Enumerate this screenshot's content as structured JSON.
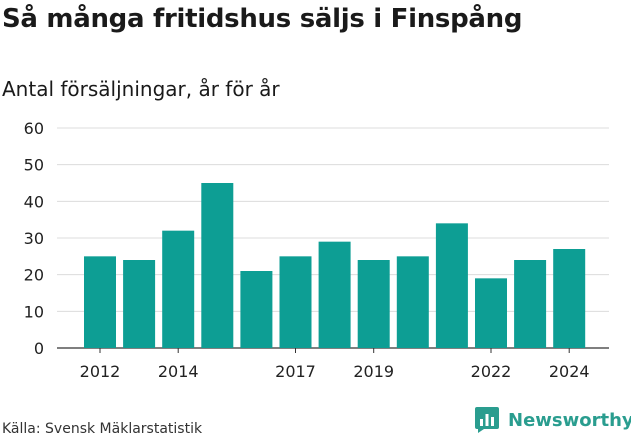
{
  "title": "Så många fritidshus säljs i Finspång",
  "subtitle": "Antal försäljningar, år för år",
  "source": "Källa: Svensk Mäklarstatistik",
  "brand": {
    "name": "Newsworthy",
    "icon": "newsworthy-chart-icon",
    "color": "#2a9d8f"
  },
  "chart_data": {
    "type": "bar",
    "title": "Så många fritidshus säljs i Finspång",
    "subtitle": "Antal försäljningar, år för år",
    "xlabel": "",
    "ylabel": "",
    "categories": [
      2012,
      2013,
      2014,
      2015,
      2016,
      2017,
      2018,
      2019,
      2020,
      2021,
      2022,
      2023,
      2024
    ],
    "values": [
      25,
      24,
      32,
      45,
      21,
      25,
      29,
      24,
      25,
      34,
      19,
      24,
      27
    ],
    "x_tick_labels": [
      "2012",
      "2014",
      "2017",
      "2019",
      "2022",
      "2024"
    ],
    "y_ticks": [
      0,
      10,
      20,
      30,
      40,
      50,
      60
    ],
    "ylim": [
      0,
      60
    ],
    "grid": true,
    "bar_color": "#0d9e94"
  }
}
